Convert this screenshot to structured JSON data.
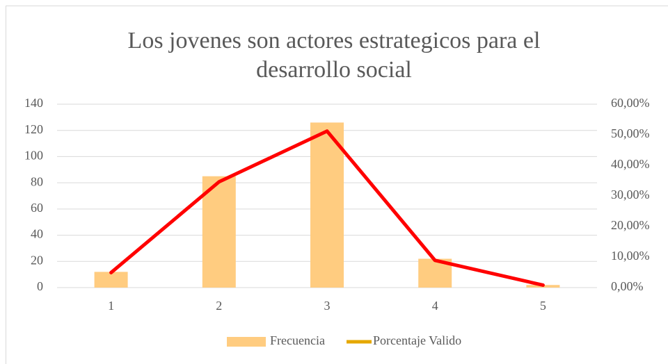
{
  "chart_data": {
    "type": "bar_line",
    "title": "Los jovenes son actores estrategicos para el desarrollo social",
    "categories": [
      "1",
      "2",
      "3",
      "4",
      "5"
    ],
    "series": [
      {
        "name": "Frecuencia",
        "type": "bar",
        "color": "#ffcc80",
        "values": [
          12,
          85,
          126,
          22,
          2
        ]
      },
      {
        "name": "Porcentaje Valido",
        "type": "line",
        "axis": "y2",
        "color": "#ff0000",
        "legend_color": "#e6a800",
        "values": [
          4.9,
          34.6,
          51.2,
          8.9,
          0.8
        ]
      }
    ],
    "ylim": [
      0,
      140
    ],
    "yticks": [
      0,
      20,
      40,
      60,
      80,
      100,
      120,
      140
    ],
    "y2lim": [
      0,
      60
    ],
    "y2ticks": [
      {
        "value": 0,
        "label": "0,00%"
      },
      {
        "value": 10,
        "label": "10,00%"
      },
      {
        "value": 20,
        "label": "20,00%"
      },
      {
        "value": 30,
        "label": "30,00%"
      },
      {
        "value": 40,
        "label": "40,00%"
      },
      {
        "value": 50,
        "label": "50,00%"
      },
      {
        "value": 60,
        "label": "60,00%"
      }
    ],
    "grid": true,
    "legend": "bottom"
  }
}
